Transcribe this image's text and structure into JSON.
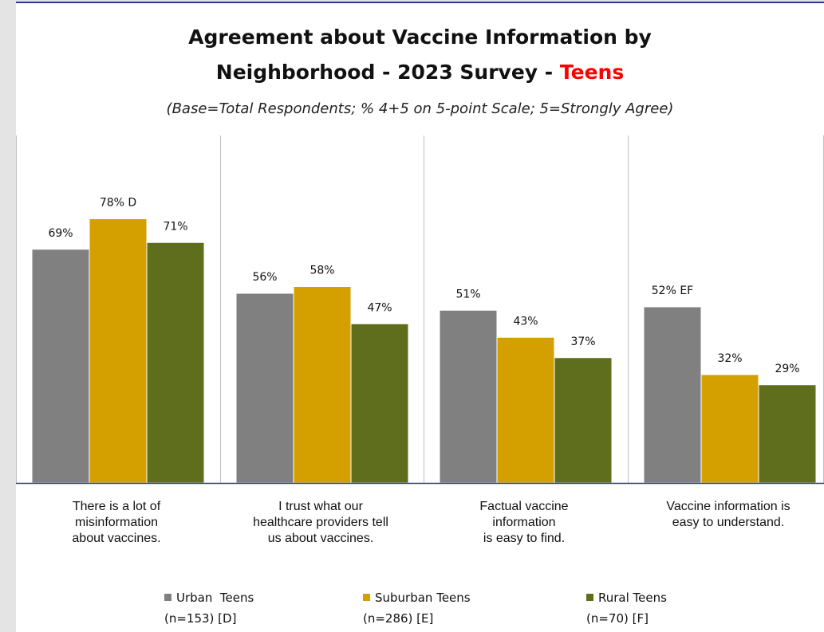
{
  "chart_data": {
    "type": "bar",
    "title": "Agreement about Vaccine Information by Neighborhood - 2023 Survey - Teens",
    "title_line1": "Agreement about Vaccine Information by",
    "title_line2_prefix": "Neighborhood - 2023 Survey - ",
    "title_line2_highlight": "Teens",
    "subtitle": "(Base=Total Respondents; % 4+5 on 5-point Scale; 5=Strongly Agree)",
    "xlabel": "",
    "ylabel": "",
    "ylim": [
      0,
      100
    ],
    "grid": false,
    "legend_position": "bottom",
    "categories": [
      "There is a lot of misinformation about vaccines.",
      "I trust what our healthcare providers tell us about vaccines.",
      "Factual vaccine information is easy to find.",
      "Vaccine information is easy to understand."
    ],
    "category_lines": [
      [
        "There is a lot of",
        "misinformation",
        "about vaccines."
      ],
      [
        "I trust what our",
        "healthcare providers tell",
        "us about vaccines."
      ],
      [
        "Factual vaccine",
        "information",
        "is easy to find."
      ],
      [
        "Vaccine information is",
        "easy to understand."
      ]
    ],
    "series": [
      {
        "name": "Urban  Teens",
        "sub": "(n=153) [D]",
        "color": "#808080",
        "values": [
          69,
          56,
          51,
          52
        ],
        "labels": [
          "69%",
          "56%",
          "51%",
          "52% EF"
        ]
      },
      {
        "name": "Suburban Teens",
        "sub": "(n=286) [E]",
        "color": "#d4a000",
        "values": [
          78,
          58,
          43,
          32
        ],
        "labels": [
          "78% D",
          "58%",
          "43%",
          "32%"
        ]
      },
      {
        "name": "Rural Teens",
        "sub": "(n=70) [F]",
        "color": "#5e6e1c",
        "values": [
          71,
          47,
          37,
          29
        ],
        "labels": [
          "71%",
          "47%",
          "37%",
          "29%"
        ]
      }
    ]
  }
}
